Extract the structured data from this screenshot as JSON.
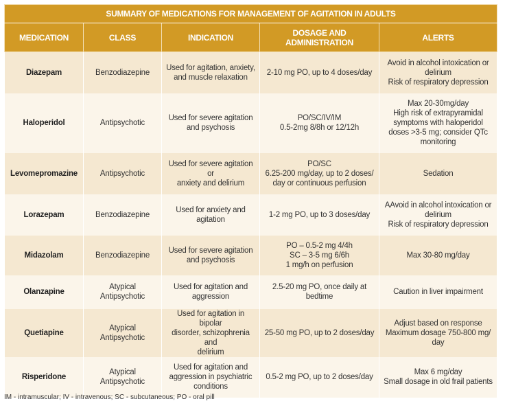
{
  "title": "SUMMARY OF MEDICATIONS FOR MANAGEMENT OF AGITATION IN ADULTS",
  "columns": [
    "MEDICATION",
    "CLASS",
    "INDICATION",
    "DOSAGE AND\nADMINISTRATION",
    "ALERTS"
  ],
  "rows": [
    {
      "medication": "Diazepam",
      "class": "Benzodiazepine",
      "indication": "Used for agitation, anxiety,\nand muscle relaxation",
      "dosage": "2-10 mg PO, up to 4 doses/day",
      "alerts": "Avoid in alcohol intoxication or\ndelirium\nRisk of respiratory depression"
    },
    {
      "medication": "Haloperidol",
      "class": "Antipsychotic",
      "indication": "Used for severe agitation\nand psychosis",
      "dosage": "PO/SC/IV/IM\n0.5-2mg 8/8h or 12/12h",
      "alerts": "Max 20-30mg/day\nHigh risk of extrapyramidal\nsymptoms with haloperidol\ndoses >3-5 mg; consider QTc\nmonitoring"
    },
    {
      "medication": "Levomepromazine",
      "class": "Antipsychotic",
      "indication": "Used for severe agitation or\nanxiety and delirium",
      "dosage": "PO/SC\n6.25-200 mg/day, up to 2 doses/\nday or continuous perfusion",
      "alerts": "Sedation"
    },
    {
      "medication": "Lorazepam",
      "class": "Benzodiazepine",
      "indication": "Used for anxiety and\nagitation",
      "dosage": "1-2 mg PO, up to 3 doses/day",
      "alerts": "AAvoid in alcohol intoxication or\ndelirium\nRisk of respiratory depression"
    },
    {
      "medication": "Midazolam",
      "class": "Benzodiazepine",
      "indication": "Used for severe agitation\nand psychosis",
      "dosage": "PO – 0.5-2 mg 4/4h\nSC – 3-5 mg 6/6h\n1 mg/h on perfusion",
      "alerts": "Max 30-80 mg/day"
    },
    {
      "medication": "Olanzapine",
      "class": "Atypical\nAntipsychotic",
      "indication": "Used for agitation and\naggression",
      "dosage": "2.5-20 mg PO, once daily at\nbedtime",
      "alerts": "Caution in liver impairment"
    },
    {
      "medication": "Quetiapine",
      "class": "Atypical\nAntipsychotic",
      "indication": "Used for agitation in bipolar\ndisorder, schizophrenia and\ndelirium",
      "dosage": "25-50 mg PO, up to 2 doses/day",
      "alerts": "Adjust based on response\nMaximum dosage 750-800 mg/\nday"
    },
    {
      "medication": "Risperidone",
      "class": "Atypical\nAntipsychotic",
      "indication": "Used for agitation and\naggression in psychiatric\nconditions",
      "dosage": "0.5-2 mg PO, up to 2 doses/day",
      "alerts": "Max 6 mg/day\nSmall dosage in old frail patients"
    }
  ],
  "footnote": "IM - intramuscular; IV - intravenous; SC - subcutaneous; PO - oral pill"
}
